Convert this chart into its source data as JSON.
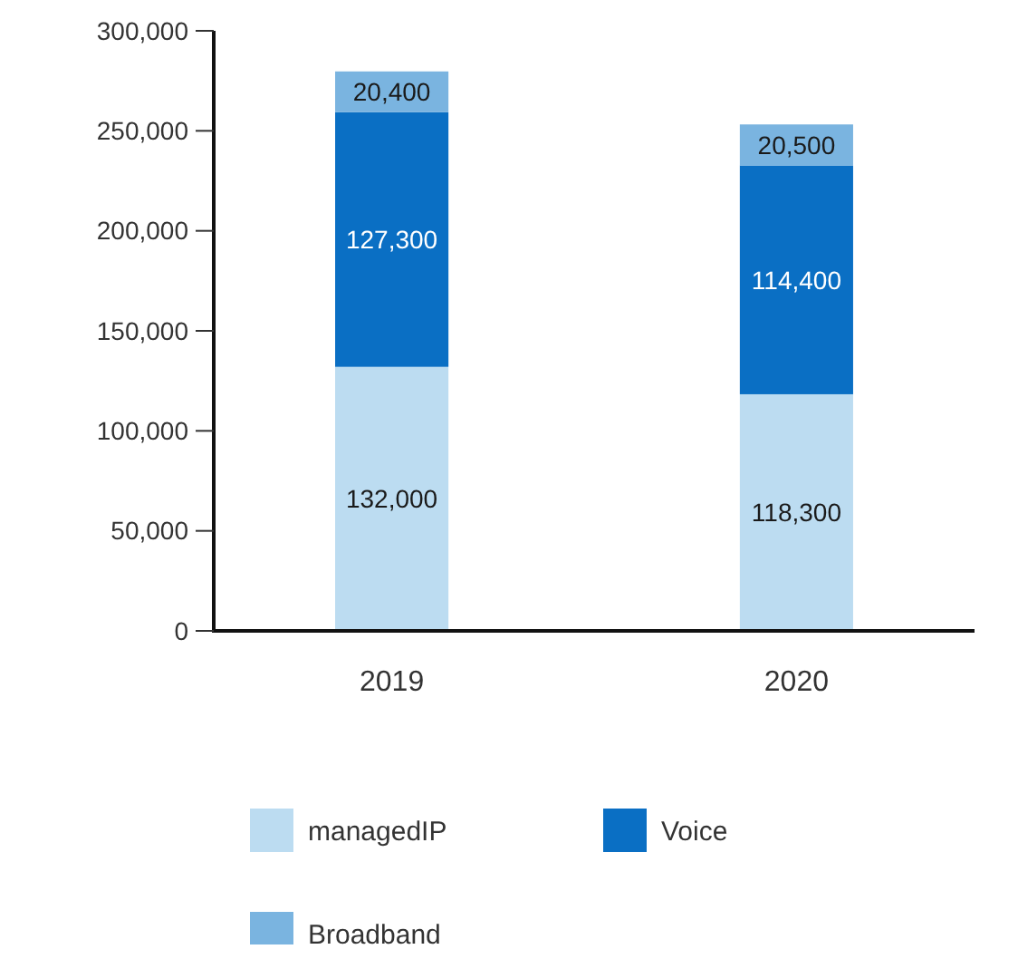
{
  "chart_data": {
    "type": "bar",
    "stacked": true,
    "categories": [
      "2019",
      "2020"
    ],
    "series": [
      {
        "name": "managedIP",
        "color": "#bcdcf1",
        "values": [
          132000,
          118300
        ],
        "value_labels": [
          "132,000",
          "118,300"
        ]
      },
      {
        "name": "Voice",
        "color": "#0a6fc4",
        "values": [
          127300,
          114400
        ],
        "value_labels": [
          "127,300",
          "114,400"
        ]
      },
      {
        "name": "Broadband",
        "color": "#7ab4e0",
        "values": [
          20400,
          20500
        ],
        "value_labels": [
          "20,400",
          "20,500"
        ]
      }
    ],
    "ylim": [
      0,
      300000
    ],
    "yticks": [
      {
        "value": 0,
        "label": "0"
      },
      {
        "value": 50000,
        "label": "50,000"
      },
      {
        "value": 100000,
        "label": "100,000"
      },
      {
        "value": 150000,
        "label": "150,000"
      },
      {
        "value": 200000,
        "label": "200,000"
      },
      {
        "value": 250000,
        "label": "250,000"
      },
      {
        "value": 300000,
        "label": "300,000"
      }
    ],
    "grid": false,
    "legend": "bottom"
  }
}
